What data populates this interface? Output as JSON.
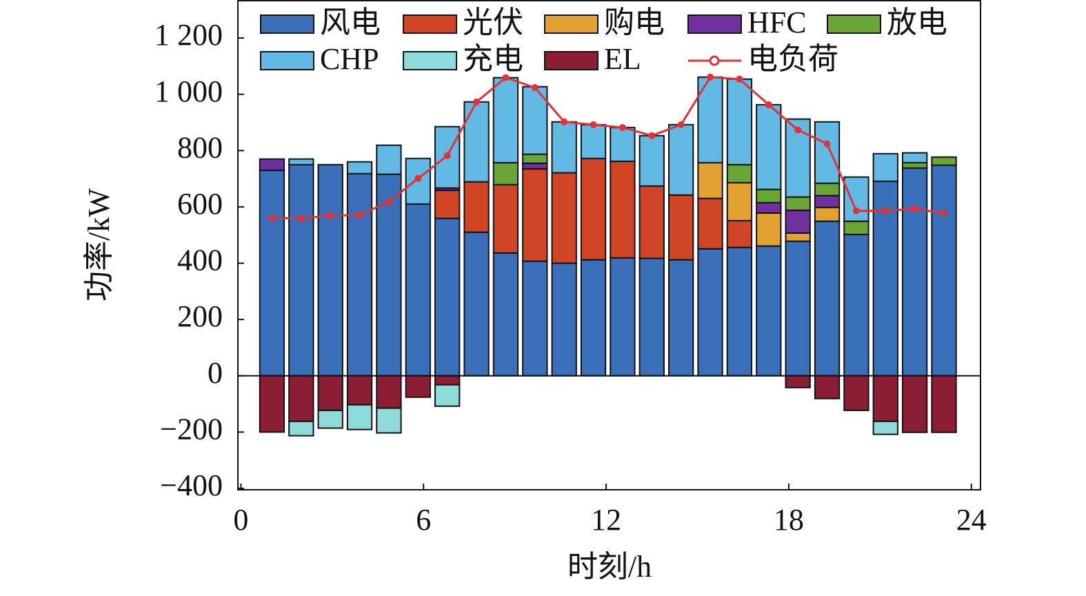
{
  "chart_data": {
    "type": "bar",
    "stacked": true,
    "xlabel": "时刻/h",
    "ylabel": "功率/kW",
    "x": [
      1.02,
      1.98,
      2.94,
      3.9,
      4.86,
      5.82,
      6.78,
      7.74,
      8.7,
      9.66,
      10.62,
      11.58,
      12.54,
      13.5,
      14.46,
      15.42,
      16.38,
      17.34,
      18.3,
      19.26,
      20.22,
      21.18,
      22.14,
      23.1
    ],
    "xlim": [
      -0.1,
      24.3
    ],
    "xticks": [
      0,
      6,
      12,
      18,
      24
    ],
    "ylim": [
      -405,
      1335
    ],
    "yticks": [
      {
        "value": -400,
        "label": "−400"
      },
      {
        "value": -200,
        "label": "−200"
      },
      0,
      200,
      400,
      600,
      800,
      {
        "value": 1000,
        "label": "1 000"
      },
      {
        "value": 1200,
        "label": "1 200"
      }
    ],
    "series": [
      {
        "name": "风电",
        "color": "#3a6fba",
        "values": [
          730,
          750,
          750,
          718,
          716,
          610,
          559,
          510,
          436,
          407,
          400,
          412,
          419,
          417,
          412,
          451,
          456,
          461,
          478,
          549,
          502,
          691,
          738,
          748
        ]
      },
      {
        "name": "光伏",
        "color": "#cf4526",
        "values": [
          0,
          0,
          0,
          0,
          0,
          0,
          100,
          179,
          243,
          328,
          321,
          360,
          343,
          257,
          230,
          179,
          95,
          0,
          0,
          0,
          0,
          0,
          0,
          0
        ]
      },
      {
        "name": "购电",
        "color": "#e3a12f",
        "values": [
          0,
          0,
          0,
          0,
          0,
          0,
          0,
          0,
          0,
          0,
          0,
          0,
          0,
          0,
          0,
          127,
          135,
          117,
          29,
          49,
          0,
          0,
          0,
          0
        ]
      },
      {
        "name": "HFC",
        "color": "#7030a0",
        "values": [
          40,
          0,
          0,
          0,
          0,
          0,
          8,
          0,
          0,
          20,
          0,
          0,
          0,
          0,
          0,
          0,
          0,
          37,
          81,
          42,
          0,
          0,
          0,
          0
        ]
      },
      {
        "name": "放电",
        "color": "#6aa636",
        "values": [
          0,
          0,
          0,
          0,
          0,
          0,
          0,
          0,
          78,
          32,
          0,
          0,
          0,
          0,
          0,
          0,
          64,
          47,
          47,
          44,
          47,
          0,
          19,
          29
        ]
      },
      {
        "name": "CHP",
        "color": "#62b9e3",
        "values": [
          0,
          20,
          0,
          42,
          103,
          162,
          218,
          284,
          302,
          240,
          181,
          120,
          120,
          179,
          250,
          304,
          304,
          301,
          277,
          218,
          157,
          98,
          35,
          0
        ]
      },
      {
        "name": "充电",
        "color": "#8fdada",
        "values": [
          0,
          -51,
          -63,
          -88,
          -88,
          0,
          -76,
          0,
          0,
          0,
          0,
          0,
          0,
          0,
          0,
          0,
          0,
          0,
          0,
          0,
          0,
          -46,
          0,
          0
        ]
      },
      {
        "name": "EL",
        "color": "#8b1e34",
        "values": [
          -200,
          -162,
          -123,
          -103,
          -115,
          -76,
          -32,
          0,
          0,
          0,
          0,
          0,
          0,
          0,
          0,
          0,
          0,
          0,
          -42,
          -81,
          -123,
          -162,
          -201,
          -201
        ]
      },
      {
        "name": "电负荷",
        "color": "#e0323a",
        "type": "line",
        "values": [
          561,
          559,
          569,
          571,
          618,
          701,
          782,
          973,
          1059,
          1024,
          902,
          892,
          882,
          853,
          892,
          1061,
          1054,
          963,
          873,
          824,
          586,
          586,
          593,
          578
        ]
      }
    ]
  }
}
